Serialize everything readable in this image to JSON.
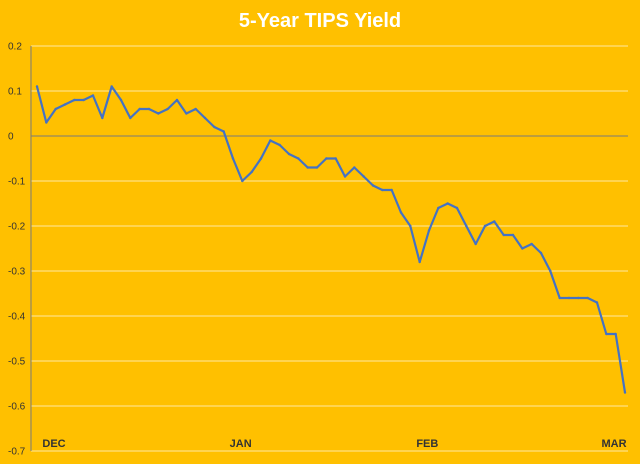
{
  "chart_data": {
    "type": "line",
    "title": "5-Year TIPS Yield",
    "xlabel": "",
    "ylabel": "",
    "ylim": [
      -0.7,
      0.2
    ],
    "yticks": [
      0.2,
      0.1,
      0,
      -0.1,
      -0.2,
      -0.3,
      -0.4,
      -0.5,
      -0.6,
      -0.7
    ],
    "ytick_labels": [
      "0.2",
      "0.1",
      "0",
      "-0.1",
      "-0.2",
      "-0.3",
      "-0.4",
      "-0.5",
      "-0.6",
      "-0.7"
    ],
    "x_month_labels": [
      {
        "label": "DEC",
        "index": 0
      },
      {
        "label": "JAN",
        "index": 20
      },
      {
        "label": "FEB",
        "index": 40
      },
      {
        "label": "MAR",
        "index": 60
      }
    ],
    "grid": true,
    "legend": "none",
    "colors": {
      "background": "#FFC000",
      "line": "#4472C4",
      "gridline": "#FFFFFF",
      "title": "#FFFFFF"
    },
    "series": [
      {
        "values": [
          0.11,
          0.03,
          0.06,
          0.07,
          0.08,
          0.08,
          0.09,
          0.04,
          0.11,
          0.08,
          0.04,
          0.06,
          0.06,
          0.05,
          0.06,
          0.08,
          0.05,
          0.06,
          0.04,
          0.02,
          0.01,
          -0.05,
          -0.1,
          -0.08,
          -0.05,
          -0.01,
          -0.02,
          -0.04,
          -0.05,
          -0.07,
          -0.07,
          -0.05,
          -0.05,
          -0.09,
          -0.07,
          -0.09,
          -0.11,
          -0.12,
          -0.12,
          -0.17,
          -0.2,
          -0.28,
          -0.21,
          -0.16,
          -0.15,
          -0.16,
          -0.2,
          -0.24,
          -0.2,
          -0.19,
          -0.22,
          -0.22,
          -0.25,
          -0.24,
          -0.26,
          -0.3,
          -0.36,
          -0.36,
          -0.36,
          -0.36,
          -0.37,
          -0.44,
          -0.44,
          -0.57
        ]
      }
    ]
  }
}
